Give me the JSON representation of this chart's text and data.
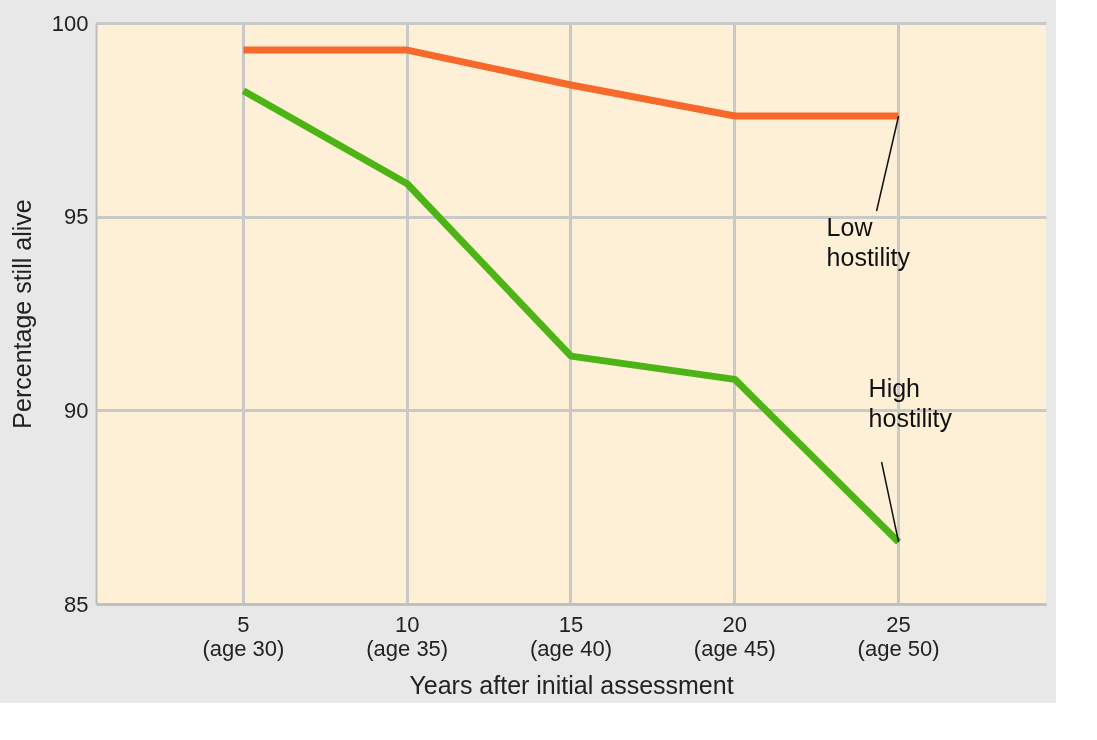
{
  "chart_data": {
    "type": "line",
    "xlabel": "Years after initial assessment",
    "ylabel": "Percentage still alive",
    "categories": [
      "5\n(age 30)",
      "10\n(age 35)",
      "15\n(age 40)",
      "20\n(age 45)",
      "25\n(age 50)"
    ],
    "series": [
      {
        "name": "Low hostility",
        "color": "#f7692b",
        "values": [
          99.3,
          99.3,
          98.4,
          97.6,
          97.6
        ]
      },
      {
        "name": "High hostility",
        "color": "#4cb515",
        "values": [
          98.25,
          95.85,
          91.4,
          90.8,
          86.6
        ]
      }
    ],
    "ylim": [
      85,
      100
    ],
    "yticks": [
      85,
      90,
      95,
      100
    ],
    "grid": true,
    "legend": false,
    "marker": "none",
    "line_style": "solid"
  }
}
